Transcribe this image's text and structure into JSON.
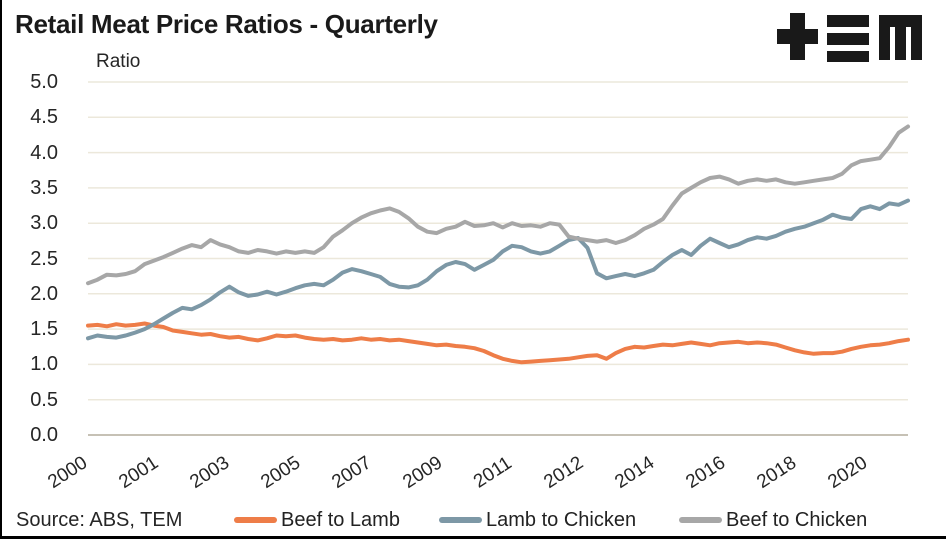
{
  "header": {
    "title": "Retail Meat Price Ratios - Quarterly"
  },
  "footer": {
    "source": "Source: ABS, TEM"
  },
  "chart_data": {
    "type": "line",
    "title": "Retail Meat Price Ratios - Quarterly",
    "y_axis_title": "Ratio",
    "ylim": [
      0,
      5
    ],
    "y_ticks": [
      0,
      0.5,
      1.0,
      1.5,
      2.0,
      2.5,
      3.0,
      3.5,
      4.0,
      4.5,
      5.0
    ],
    "x_tick_labels": [
      "2000",
      "2001",
      "2003",
      "2005",
      "2007",
      "2009",
      "2011",
      "2012",
      "2014",
      "2016",
      "2018",
      "2020"
    ],
    "grid_on": true,
    "grid_color": "#ECE8DB",
    "axis_line_color": "#C6C1B5",
    "legend_position": "bottom",
    "series": [
      {
        "name": "Beef to Lamb",
        "color": "#EE7D48",
        "values": [
          1.55,
          1.56,
          1.54,
          1.57,
          1.55,
          1.56,
          1.58,
          1.55,
          1.53,
          1.48,
          1.46,
          1.44,
          1.42,
          1.43,
          1.4,
          1.38,
          1.39,
          1.36,
          1.34,
          1.37,
          1.41,
          1.4,
          1.41,
          1.38,
          1.36,
          1.35,
          1.36,
          1.34,
          1.35,
          1.37,
          1.35,
          1.36,
          1.34,
          1.35,
          1.33,
          1.31,
          1.29,
          1.27,
          1.28,
          1.26,
          1.25,
          1.23,
          1.19,
          1.13,
          1.08,
          1.05,
          1.03,
          1.04,
          1.05,
          1.06,
          1.07,
          1.08,
          1.1,
          1.12,
          1.13,
          1.08,
          1.16,
          1.22,
          1.25,
          1.24,
          1.26,
          1.28,
          1.27,
          1.29,
          1.31,
          1.29,
          1.27,
          1.3,
          1.31,
          1.32,
          1.3,
          1.31,
          1.3,
          1.28,
          1.24,
          1.2,
          1.17,
          1.15,
          1.16,
          1.16,
          1.18,
          1.22,
          1.25,
          1.27,
          1.28,
          1.3,
          1.33,
          1.35
        ]
      },
      {
        "name": "Lamb to Chicken",
        "color": "#7D98A6",
        "values": [
          1.37,
          1.41,
          1.39,
          1.38,
          1.41,
          1.45,
          1.5,
          1.57,
          1.65,
          1.73,
          1.8,
          1.78,
          1.84,
          1.92,
          2.02,
          2.1,
          2.02,
          1.97,
          1.99,
          2.03,
          1.99,
          2.03,
          2.08,
          2.12,
          2.14,
          2.12,
          2.2,
          2.3,
          2.35,
          2.32,
          2.28,
          2.24,
          2.14,
          2.1,
          2.09,
          2.12,
          2.2,
          2.32,
          2.41,
          2.45,
          2.42,
          2.34,
          2.41,
          2.48,
          2.6,
          2.68,
          2.66,
          2.6,
          2.57,
          2.6,
          2.68,
          2.76,
          2.79,
          2.65,
          2.29,
          2.22,
          2.25,
          2.28,
          2.25,
          2.29,
          2.34,
          2.45,
          2.55,
          2.62,
          2.55,
          2.68,
          2.78,
          2.72,
          2.66,
          2.7,
          2.76,
          2.8,
          2.78,
          2.82,
          2.88,
          2.92,
          2.95,
          3.0,
          3.05,
          3.12,
          3.08,
          3.06,
          3.2,
          3.24,
          3.2,
          3.28,
          3.26,
          3.32
        ]
      },
      {
        "name": "Beef to Chicken",
        "color": "#A7A7A7",
        "values": [
          2.15,
          2.2,
          2.27,
          2.26,
          2.28,
          2.32,
          2.42,
          2.47,
          2.52,
          2.58,
          2.64,
          2.69,
          2.66,
          2.76,
          2.7,
          2.66,
          2.6,
          2.58,
          2.62,
          2.6,
          2.57,
          2.6,
          2.58,
          2.6,
          2.58,
          2.66,
          2.81,
          2.9,
          3.0,
          3.08,
          3.14,
          3.18,
          3.21,
          3.16,
          3.07,
          2.95,
          2.88,
          2.86,
          2.92,
          2.95,
          3.02,
          2.96,
          2.97,
          3.0,
          2.94,
          3.0,
          2.96,
          2.97,
          2.95,
          3.0,
          2.98,
          2.81,
          2.78,
          2.76,
          2.74,
          2.76,
          2.72,
          2.76,
          2.83,
          2.92,
          2.98,
          3.06,
          3.25,
          3.42,
          3.5,
          3.58,
          3.64,
          3.66,
          3.62,
          3.56,
          3.6,
          3.62,
          3.6,
          3.62,
          3.58,
          3.56,
          3.58,
          3.6,
          3.62,
          3.64,
          3.7,
          3.82,
          3.88,
          3.9,
          3.92,
          4.08,
          4.28,
          4.37
        ]
      }
    ]
  }
}
